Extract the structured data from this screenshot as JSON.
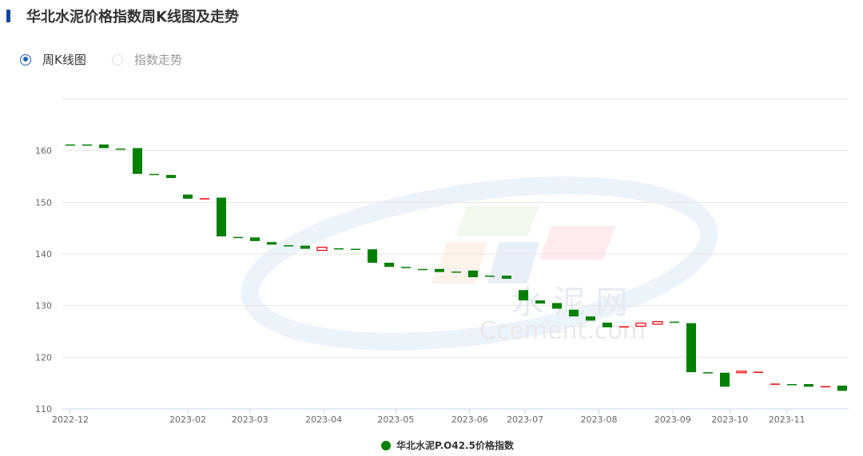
{
  "header": {
    "title": "华北水泥价格指数周K线图及走势"
  },
  "view_toggle": {
    "options": [
      {
        "label": "周K线图",
        "selected": true
      },
      {
        "label": "指数走势",
        "selected": false
      }
    ]
  },
  "colors": {
    "accent": "#1f5fae",
    "down": "#008000",
    "up": "#ff0000",
    "grid": "#e6e6e6",
    "axis": "#c5d4ea"
  },
  "watermark": {
    "cn": "水 泥 网",
    "en": "Ccement.com"
  },
  "chart_data": {
    "type": "candlestick",
    "title": "",
    "ylim": [
      110,
      170
    ],
    "y_ticks": [
      110,
      120,
      130,
      140,
      150,
      160
    ],
    "grid": true,
    "legend": {
      "placement": "bottom",
      "entries": [
        {
          "name": "华北水泥P.O42.5价格指数",
          "color": "#008000"
        }
      ]
    },
    "x_ticks": [
      {
        "label": "2022-12",
        "index": 0
      },
      {
        "label": "2023-02",
        "index": 7
      },
      {
        "label": "2023-03",
        "index": 10.7
      },
      {
        "label": "2023-04",
        "index": 15.1
      },
      {
        "label": "2023-05",
        "index": 19.4
      },
      {
        "label": "2023-06",
        "index": 23.8
      },
      {
        "label": "2023-07",
        "index": 27.1
      },
      {
        "label": "2023-08",
        "index": 31.5
      },
      {
        "label": "2023-09",
        "index": 35.9
      },
      {
        "label": "2023-10",
        "index": 39.3
      },
      {
        "label": "2023-11",
        "index": 42.7
      }
    ],
    "candles": [
      [
        161.2,
        161.2
      ],
      [
        161.2,
        161.2
      ],
      [
        161.2,
        160.5
      ],
      [
        160.4,
        160.4
      ],
      [
        160.5,
        155.5
      ],
      [
        155.5,
        155.5
      ],
      [
        155.3,
        154.7
      ],
      [
        151.5,
        150.7
      ],
      [
        150.8,
        150.8
      ],
      [
        150.9,
        143.4
      ],
      [
        143.3,
        143.3
      ],
      [
        143.2,
        142.5
      ],
      [
        142.3,
        141.8
      ],
      [
        141.7,
        141.7
      ],
      [
        141.6,
        141.0
      ],
      [
        140.7,
        141.3
      ],
      [
        141.1,
        141.1
      ],
      [
        141.0,
        141.0
      ],
      [
        140.9,
        138.3
      ],
      [
        138.3,
        137.5
      ],
      [
        137.5,
        137.5
      ],
      [
        137.1,
        137.1
      ],
      [
        137.1,
        136.5
      ],
      [
        136.6,
        136.6
      ],
      [
        136.8,
        135.5
      ],
      [
        135.8,
        135.8
      ],
      [
        135.8,
        135.2
      ],
      [
        133.0,
        131.0
      ],
      [
        131.0,
        130.4
      ],
      [
        130.5,
        129.4
      ],
      [
        129.2,
        127.9
      ],
      [
        127.9,
        127.1
      ],
      [
        126.7,
        125.8
      ],
      [
        126.0,
        126.0
      ],
      [
        126.0,
        126.6
      ],
      [
        126.4,
        126.9
      ],
      [
        126.9,
        126.9
      ],
      [
        126.6,
        117.1
      ],
      [
        117.1,
        117.1
      ],
      [
        117.0,
        114.3
      ],
      [
        117.0,
        117.3
      ],
      [
        117.2,
        117.2
      ],
      [
        114.9,
        114.9
      ],
      [
        114.8,
        114.8
      ],
      [
        114.8,
        114.3
      ],
      [
        114.4,
        114.4
      ],
      [
        114.5,
        113.5
      ]
    ],
    "candle_fields": [
      "open",
      "close"
    ],
    "up_color": "#ff0000",
    "down_color": "#008000"
  }
}
